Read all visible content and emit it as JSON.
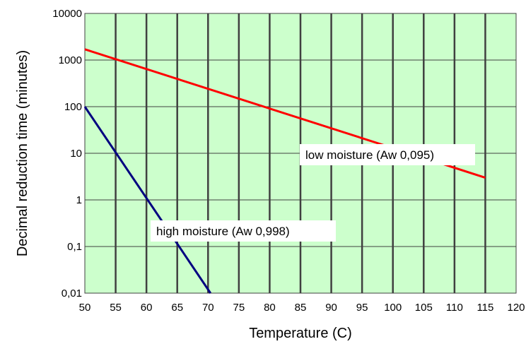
{
  "chart_data": {
    "type": "line",
    "title": "",
    "xlabel": "Temperature  (C)",
    "ylabel": "Decimal reduction time (minutes)",
    "xlim": [
      50,
      120
    ],
    "ylim": [
      0.01,
      10000
    ],
    "yscale": "log",
    "x_ticks": [
      50,
      55,
      60,
      65,
      70,
      75,
      80,
      85,
      90,
      95,
      100,
      105,
      110,
      115,
      120
    ],
    "y_ticks": [
      0.01,
      0.1,
      1,
      10,
      100,
      1000,
      10000
    ],
    "y_tick_labels": [
      "0,01",
      "0,1",
      "1",
      "10",
      "100",
      "1000",
      "10000"
    ],
    "grid": true,
    "plot_background": "#ccffcc",
    "series": [
      {
        "name": "low moisture (Aw 0,095)",
        "color": "#ff0000",
        "x": [
          50,
          115
        ],
        "y": [
          1700,
          3
        ]
      },
      {
        "name": "high moisture (Aw 0,998)",
        "color": "#000080",
        "x": [
          50,
          70.4
        ],
        "y": [
          100,
          0.01
        ]
      }
    ]
  }
}
